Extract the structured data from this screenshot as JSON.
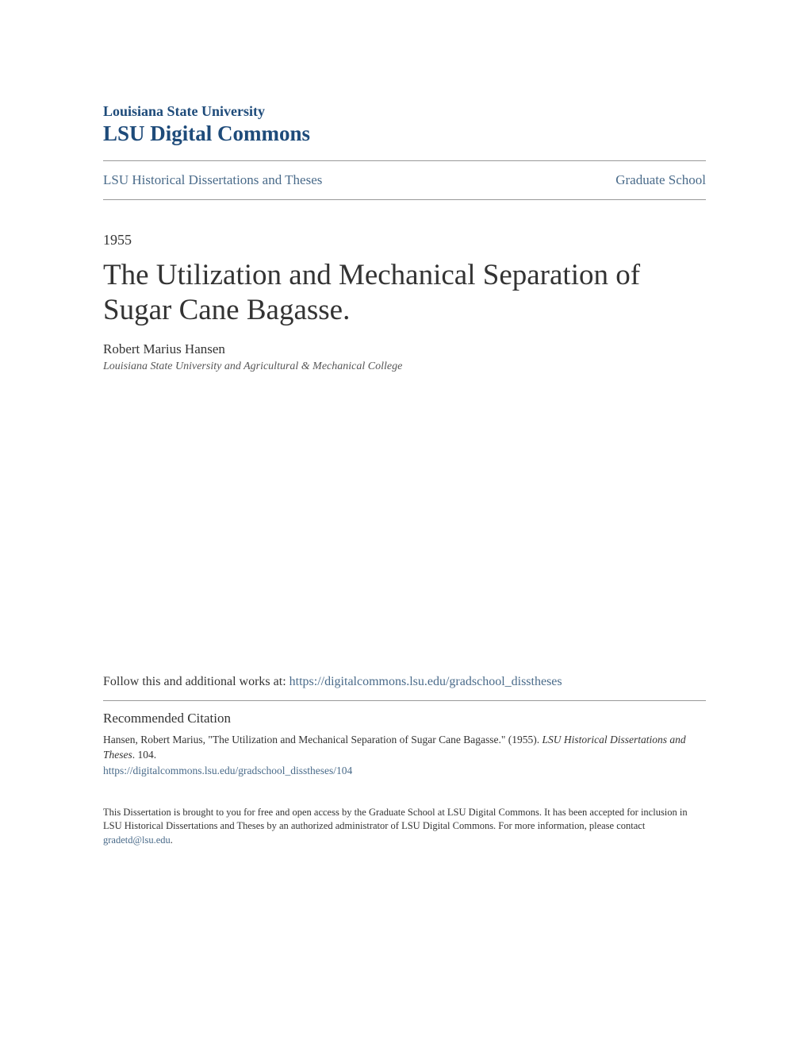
{
  "header": {
    "institution": "Louisiana State University",
    "repository": "LSU Digital Commons"
  },
  "nav": {
    "left_link": "LSU Historical Dissertations and Theses",
    "right_link": "Graduate School"
  },
  "document": {
    "year": "1955",
    "title": "The Utilization and Mechanical Separation of Sugar Cane Bagasse.",
    "author": "Robert Marius Hansen",
    "affiliation": "Louisiana State University and Agricultural & Mechanical College"
  },
  "follow": {
    "prefix": "Follow this and additional works at: ",
    "url": "https://digitalcommons.lsu.edu/gradschool_disstheses"
  },
  "citation": {
    "heading": "Recommended Citation",
    "text_part1": "Hansen, Robert Marius, \"The Utilization and Mechanical Separation of Sugar Cane Bagasse.\" (1955). ",
    "journal": "LSU Historical Dissertations and Theses",
    "text_part2": ". 104.",
    "url": "https://digitalcommons.lsu.edu/gradschool_disstheses/104"
  },
  "footer": {
    "text": "This Dissertation is brought to you for free and open access by the Graduate School at LSU Digital Commons. It has been accepted for inclusion in LSU Historical Dissertations and Theses by an authorized administrator of LSU Digital Commons. For more information, please contact ",
    "contact_email": "gradetd@lsu.edu",
    "period": "."
  },
  "colors": {
    "link_color": "#4a6b8a",
    "institution_color": "#1e4b7a",
    "text_color": "#333333",
    "divider_color": "#999999"
  }
}
